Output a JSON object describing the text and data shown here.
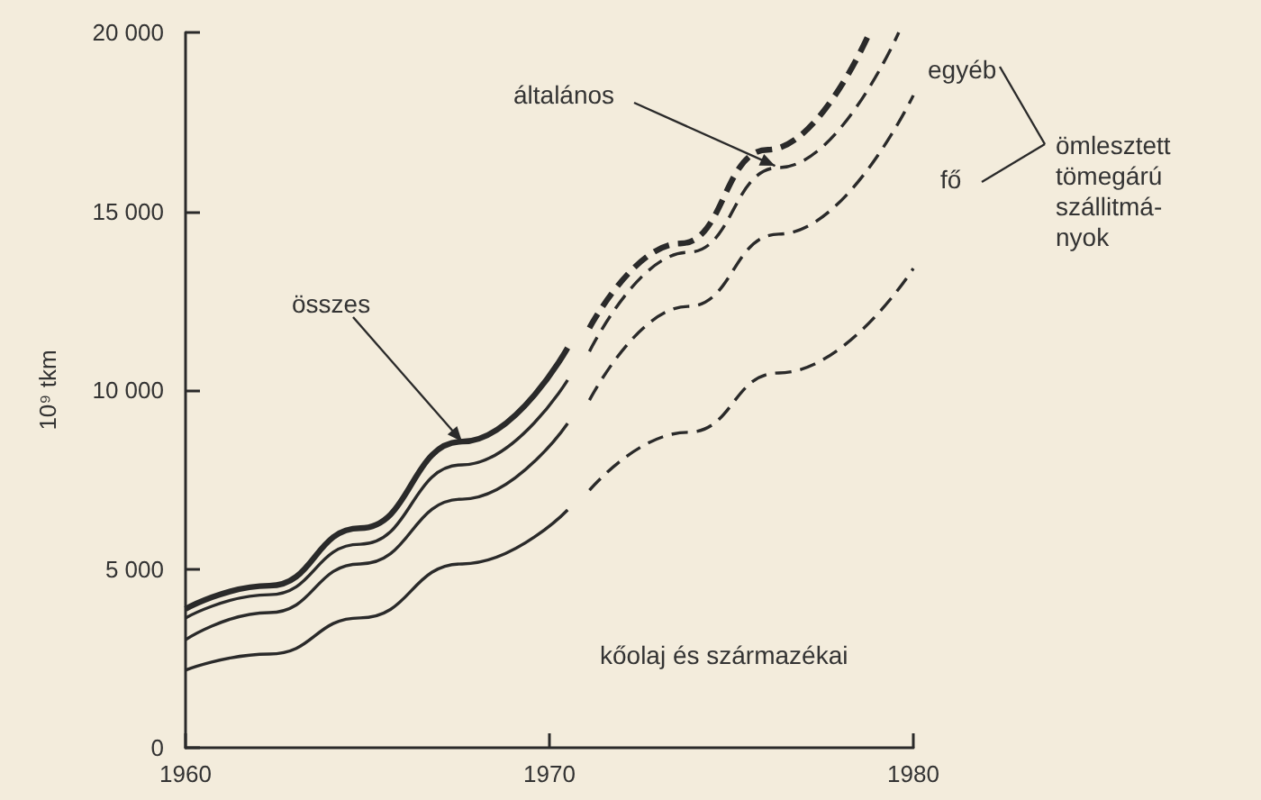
{
  "chart_data": {
    "type": "line",
    "ylabel": "10⁹ tkm",
    "xlim": [
      1960,
      1980
    ],
    "xticks": [
      1960,
      1970,
      1980
    ],
    "ylim": [
      0,
      20000
    ],
    "yticks": [
      0,
      5000,
      10000,
      15000,
      20000
    ],
    "grid": false,
    "marker": "none",
    "series": [
      {
        "color": "#2a2a2a",
        "line_style": "solid",
        "x": [
          1960,
          1962.3,
          1964.8,
          1967.6,
          1970.5
        ],
        "values": [
          3880,
          4530,
          6140,
          8560,
          11180
        ]
      },
      {
        "color": "#2a2a2a",
        "line_style": "dashed",
        "x": [
          1971.1,
          1973.6,
          1976,
          1978.8
        ],
        "values": [
          11740,
          14100,
          16720,
          20000
        ]
      },
      {
        "color": "#2a2a2a",
        "line_style": "solid",
        "x": [
          1960,
          1962.3,
          1964.8,
          1967.6,
          1970.5
        ],
        "values": [
          3630,
          4280,
          5690,
          7910,
          10280
        ]
      },
      {
        "color": "#2a2a2a",
        "line_style": "dashed",
        "x": [
          1971.1,
          1973.8,
          1976.3,
          1979.6
        ],
        "values": [
          11080,
          13850,
          16220,
          20000
        ]
      },
      {
        "color": "#2a2a2a",
        "line_style": "solid",
        "x": [
          1960,
          1962.3,
          1964.8,
          1967.6,
          1970.5
        ],
        "values": [
          3020,
          3780,
          5140,
          6950,
          9070
        ]
      },
      {
        "color": "#2a2a2a",
        "line_style": "dashed",
        "x": [
          1971.1,
          1973.8,
          1976.3,
          1980
        ],
        "values": [
          9720,
          12340,
          14360,
          18240
        ]
      },
      {
        "color": "#2a2a2a",
        "line_style": "solid",
        "x": [
          1960,
          1962.3,
          1964.8,
          1967.6,
          1970.5
        ],
        "values": [
          2170,
          2620,
          3630,
          5140,
          6650
        ]
      },
      {
        "color": "#2a2a2a",
        "line_style": "dashed",
        "x": [
          1971.1,
          1973.8,
          1976.3,
          1980
        ],
        "values": [
          7200,
          8820,
          10480,
          13400
        ]
      }
    ],
    "annotations": [
      {
        "text": "összes",
        "x": 1967.6,
        "y": 8560
      },
      {
        "text": "általános",
        "x": 1976.2,
        "y": 16270
      },
      "egyéb",
      "fő",
      "ömlesztett\ntömegárú\nszállitmá-\nnyok",
      "kőolaj és származékai"
    ]
  }
}
